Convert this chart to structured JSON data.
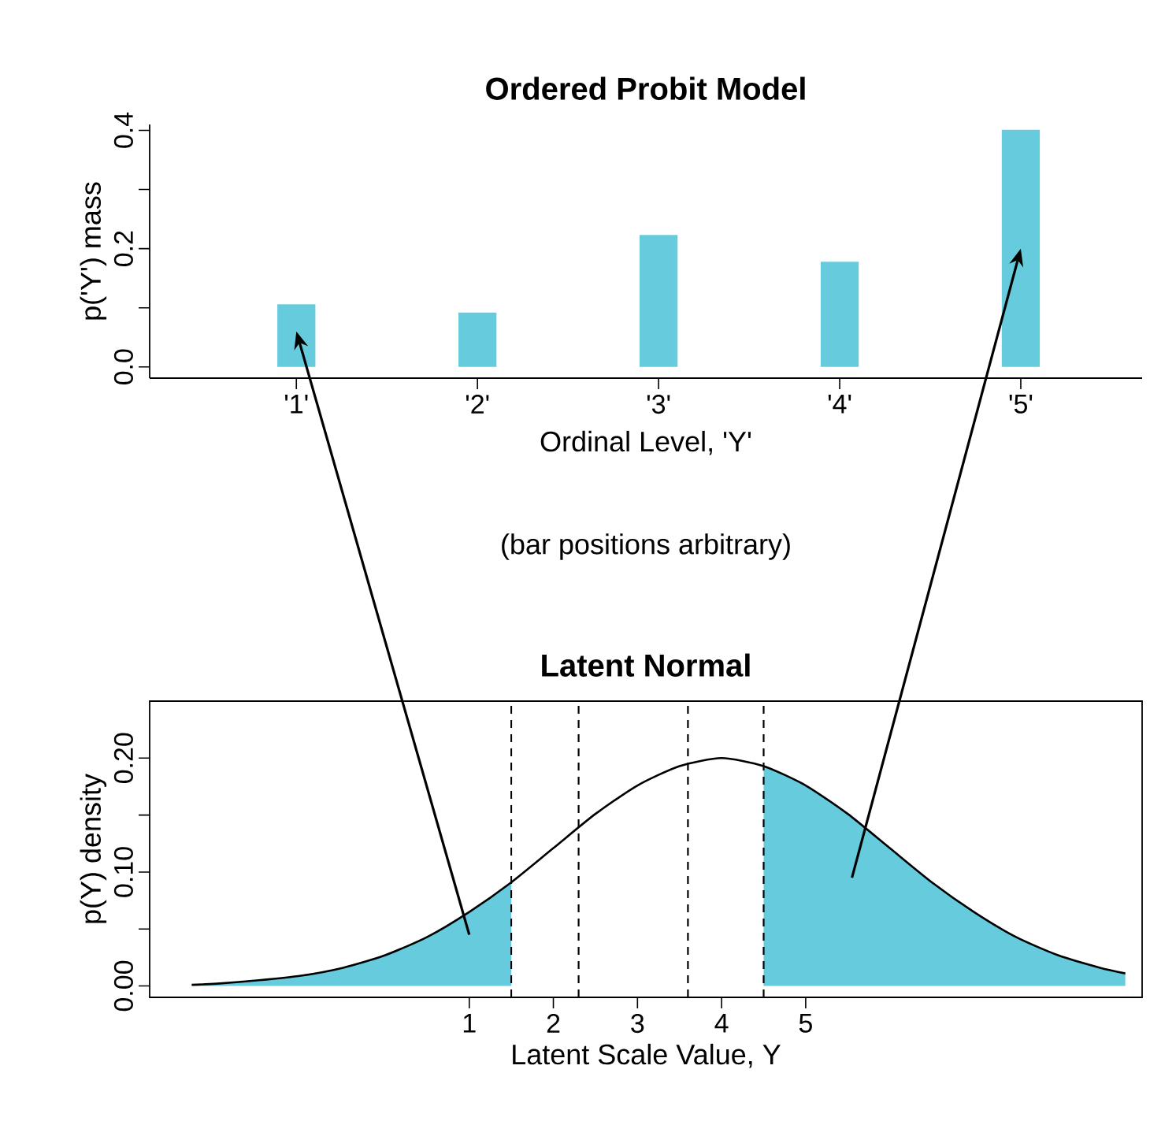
{
  "chart_data": [
    {
      "type": "bar",
      "title": "Ordered Probit Model",
      "xlabel": "Ordinal Level, 'Y'",
      "ylabel": "p('Y')  mass",
      "annotations": [
        "(bar positions arbitrary)"
      ],
      "categories": [
        "'1'",
        "'2'",
        "'3'",
        "'4'",
        "'5'"
      ],
      "values": [
        0.106,
        0.092,
        0.223,
        0.178,
        0.401
      ],
      "color": "#66cbdd",
      "ylim": [
        -0.019,
        0.41
      ],
      "yticks": [
        {
          "value": 0,
          "label": "0.0"
        },
        {
          "value": 0.1,
          "label": null
        },
        {
          "value": 0.2,
          "label": "0.2"
        },
        {
          "value": 0.3,
          "label": null
        },
        {
          "value": 0.4,
          "label": "0.4"
        }
      ]
    },
    {
      "type": "line",
      "title": "Latent Normal",
      "xlabel": "Latent Scale Value, Y",
      "ylabel": "p(Y)  density",
      "series": [
        {
          "type": "area",
          "color": "#66cbdd",
          "x": [
            -2.3,
            -2,
            -1.5,
            -1,
            -0.5,
            0,
            0.5,
            1,
            1.5
          ],
          "values": [
            0.001,
            0.002,
            0.005,
            0.009,
            0.016,
            0.027,
            0.043,
            0.065,
            0.091
          ]
        },
        {
          "type": "area",
          "color": "#66cbdd",
          "x": [
            4.5,
            5,
            5.5,
            6,
            6.5,
            7,
            7.5,
            8,
            8.5,
            8.8
          ],
          "values": [
            0.193,
            0.176,
            0.151,
            0.121,
            0.091,
            0.065,
            0.043,
            0.027,
            0.016,
            0.011
          ]
        },
        {
          "type": "line",
          "color": "#000000",
          "x": [
            -2.3,
            -2,
            -1.5,
            -1,
            -0.5,
            0,
            0.5,
            1,
            1.5,
            2,
            2.5,
            3,
            3.5,
            4,
            4.5,
            5,
            5.5,
            6,
            6.5,
            7,
            7.5,
            8,
            8.5,
            8.8
          ],
          "values": [
            0.001,
            0.002,
            0.005,
            0.009,
            0.016,
            0.027,
            0.043,
            0.065,
            0.091,
            0.121,
            0.151,
            0.176,
            0.193,
            0.2,
            0.193,
            0.176,
            0.151,
            0.121,
            0.091,
            0.065,
            0.043,
            0.027,
            0.016,
            0.011
          ]
        }
      ],
      "ref_lines": [
        {
          "axis": "x",
          "value": 1.5,
          "line_style": "dashed"
        },
        {
          "axis": "x",
          "value": 2.3,
          "line_style": "dashed"
        },
        {
          "axis": "x",
          "value": 3.6,
          "line_style": "dashed"
        },
        {
          "axis": "x",
          "value": 4.5,
          "line_style": "dashed"
        }
      ],
      "xlim": [
        -2.8,
        9.0
      ],
      "ylim": [
        -0.01,
        0.25
      ],
      "xticks": [
        1,
        2,
        3,
        4,
        5
      ],
      "yticks": [
        {
          "value": 0,
          "label": "0.00"
        },
        {
          "value": 0.05,
          "label": null
        },
        {
          "value": 0.1,
          "label": "0.10"
        },
        {
          "value": 0.15,
          "label": null
        },
        {
          "value": 0.2,
          "label": "0.20"
        }
      ]
    }
  ]
}
